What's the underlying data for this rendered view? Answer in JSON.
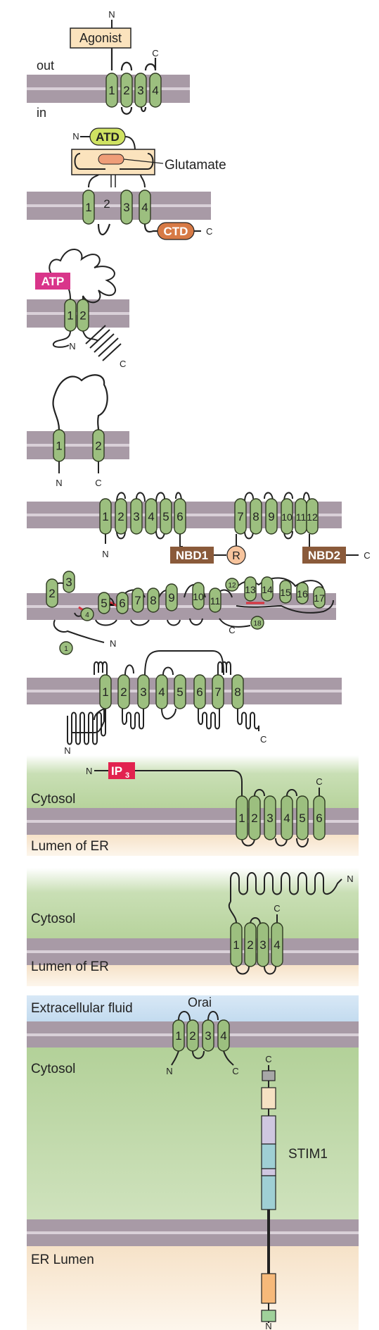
{
  "colors": {
    "membrane": "#a89aa6",
    "membrane_stripe": "#d9d0d8",
    "helix_fill": "#9cbf7f",
    "helix_stroke": "#2f3a22",
    "cytosol_green": "#cfe2bd",
    "lumen_peach": "#f6e4cc",
    "extracellular_blue": "#cfe3f3",
    "agonist_box": "#fbe3bd",
    "atd": "#cfe262",
    "glutamate": "#ef9d78",
    "ctd": "#d77a45",
    "atp": "#d9358a",
    "nbd": "#8a5a3a",
    "r_circle": "#f7c49d",
    "ip3": "#e2224f",
    "link_red": "#d8323e"
  },
  "labels": {
    "n": "N",
    "c": "C",
    "r": "R",
    "out": "out",
    "in": "in",
    "agonist": "Agonist",
    "atd": "ATD",
    "glutamate": "Glutamate",
    "ctd": "CTD",
    "atp": "ATP",
    "nbd1": "NBD1",
    "nbd2": "NBD2",
    "ip3_main": "IP",
    "ip3_sub": "3",
    "cytosol": "Cytosol",
    "lumen_er": "Lumen of ER",
    "extracellular": "Extracellular fluid",
    "orai": "Orai",
    "stim1": "STIM1",
    "er_lumen": "ER Lumen"
  },
  "panels": [
    {
      "id": "panel-1",
      "segments": [
        "1",
        "2",
        "3",
        "4"
      ]
    },
    {
      "id": "panel-2",
      "segments": [
        "1",
        "2",
        "3",
        "4"
      ]
    },
    {
      "id": "panel-3",
      "segments": [
        "1",
        "2"
      ]
    },
    {
      "id": "panel-4",
      "segments": [
        "1",
        "2"
      ]
    },
    {
      "id": "panel-5",
      "segments": [
        "1",
        "2",
        "3",
        "4",
        "5",
        "6",
        "7",
        "8",
        "9",
        "10",
        "11",
        "12"
      ]
    },
    {
      "id": "panel-6",
      "segments": [
        "1",
        "2",
        "3",
        "4",
        "5",
        "6",
        "7",
        "8",
        "9",
        "10",
        "11",
        "12",
        "13",
        "14",
        "15",
        "16",
        "17",
        "18"
      ]
    },
    {
      "id": "panel-7",
      "segments": [
        "1",
        "2",
        "3",
        "4",
        "5",
        "6",
        "7",
        "8"
      ]
    },
    {
      "id": "panel-8",
      "segments": [
        "1",
        "2",
        "3",
        "4",
        "5",
        "6"
      ]
    },
    {
      "id": "panel-9",
      "segments": [
        "1",
        "2",
        "3",
        "4"
      ]
    },
    {
      "id": "panel-10",
      "segments": [
        "1",
        "2",
        "3",
        "4"
      ]
    }
  ]
}
